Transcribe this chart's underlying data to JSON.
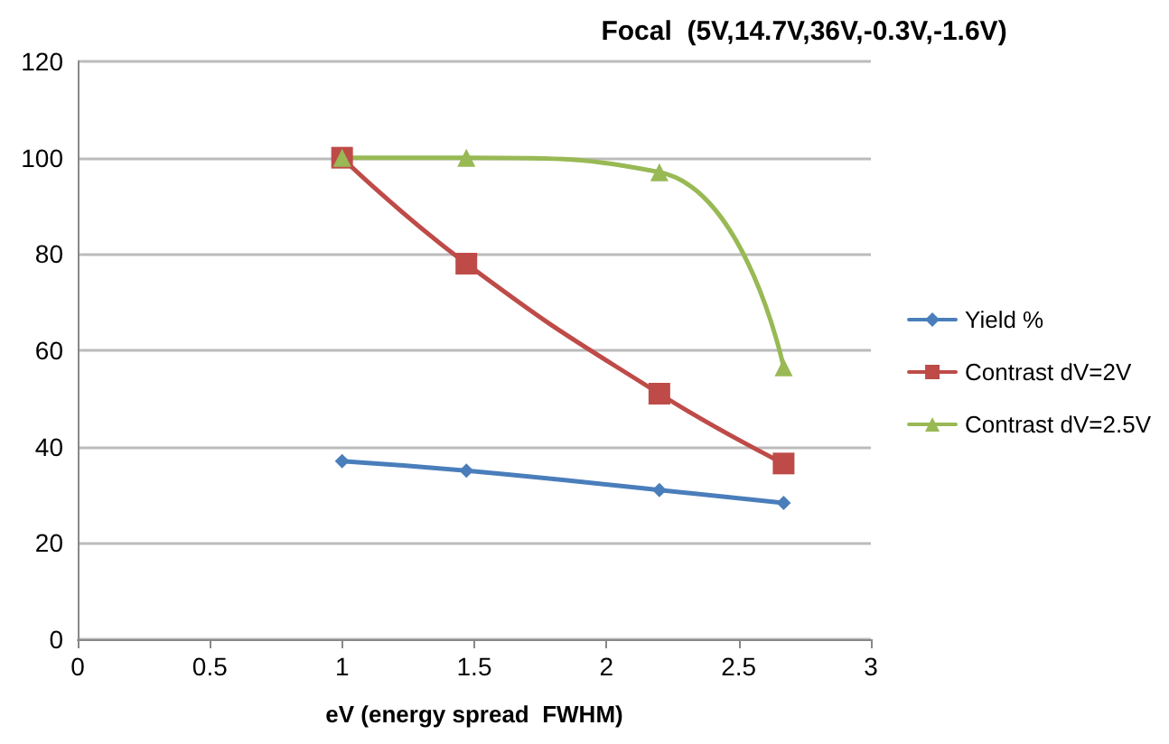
{
  "chart_data": {
    "type": "line",
    "title": "Focal  (5V,14.7V,36V,-0.3V,-1.6V)",
    "xlabel": "eV (energy spread  FWHM)",
    "x": [
      1,
      1.47,
      2.2,
      2.67
    ],
    "series": [
      {
        "name": "Yield %",
        "color": "#4a7ebb",
        "marker": "diamond",
        "values": [
          37,
          35,
          31,
          28.3
        ]
      },
      {
        "name": "Contrast dV=2V",
        "color": "#be4b48",
        "marker": "square",
        "values": [
          100,
          78,
          51,
          36.5
        ]
      },
      {
        "name": "Contrast dV=2.5V",
        "color": "#98b954",
        "marker": "triangle",
        "values": [
          100,
          100,
          97,
          56.5
        ]
      }
    ],
    "xlim": [
      0,
      3
    ],
    "xticks": [
      0,
      0.5,
      1,
      1.5,
      2,
      2.5,
      3
    ],
    "ylim": [
      0,
      120
    ],
    "yticks": [
      0,
      20,
      40,
      60,
      80,
      100,
      120
    ],
    "grid": "y",
    "legend": "right",
    "line_style": "solid"
  }
}
